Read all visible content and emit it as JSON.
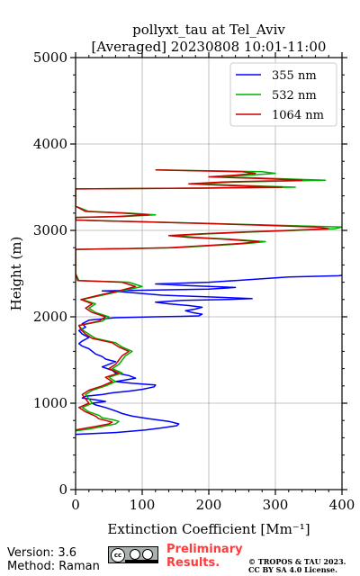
{
  "chart_data": {
    "type": "line",
    "title": "pollyxt_tau at Tel_Aviv",
    "subtitle": "[Averaged] 20230808 10:01-11:00",
    "xlabel": "Extinction Coefficient [Mm⁻¹]",
    "ylabel": "Height (m)",
    "xlim": [
      0,
      400
    ],
    "ylim": [
      0,
      5000
    ],
    "xticks": [
      "0",
      "100",
      "200",
      "300",
      "400"
    ],
    "yticks": [
      "0",
      "1000",
      "2000",
      "3000",
      "4000",
      "5000"
    ],
    "grid": true,
    "legend_position": "top-right",
    "series": [
      {
        "name": "355 nm",
        "color": "#0000ff",
        "points": [
          [
            0,
            640
          ],
          [
            60,
            660
          ],
          [
            105,
            690
          ],
          [
            130,
            715
          ],
          [
            152,
            740
          ],
          [
            155,
            760
          ],
          [
            140,
            790
          ],
          [
            110,
            820
          ],
          [
            85,
            850
          ],
          [
            70,
            880
          ],
          [
            60,
            910
          ],
          [
            45,
            950
          ],
          [
            30,
            980
          ],
          [
            25,
            1000
          ],
          [
            45,
            1020
          ],
          [
            30,
            1040
          ],
          [
            10,
            1060
          ],
          [
            15,
            1080
          ],
          [
            40,
            1100
          ],
          [
            55,
            1120
          ],
          [
            80,
            1140
          ],
          [
            100,
            1160
          ],
          [
            118,
            1190
          ],
          [
            120,
            1210
          ],
          [
            85,
            1230
          ],
          [
            60,
            1250
          ],
          [
            75,
            1270
          ],
          [
            90,
            1290
          ],
          [
            80,
            1320
          ],
          [
            60,
            1350
          ],
          [
            55,
            1380
          ],
          [
            40,
            1420
          ],
          [
            50,
            1450
          ],
          [
            60,
            1480
          ],
          [
            45,
            1510
          ],
          [
            40,
            1540
          ],
          [
            30,
            1570
          ],
          [
            25,
            1600
          ],
          [
            20,
            1630
          ],
          [
            10,
            1660
          ],
          [
            5,
            1690
          ],
          [
            10,
            1720
          ],
          [
            20,
            1760
          ],
          [
            10,
            1800
          ],
          [
            5,
            1840
          ],
          [
            15,
            1880
          ],
          [
            10,
            1920
          ],
          [
            20,
            1960
          ],
          [
            60,
            1990
          ],
          [
            120,
            2000
          ],
          [
            160,
            2005
          ],
          [
            185,
            2010
          ],
          [
            190,
            2030
          ],
          [
            175,
            2050
          ],
          [
            165,
            2070
          ],
          [
            180,
            2090
          ],
          [
            190,
            2110
          ],
          [
            170,
            2130
          ],
          [
            140,
            2150
          ],
          [
            120,
            2170
          ],
          [
            160,
            2190
          ],
          [
            230,
            2200
          ],
          [
            265,
            2210
          ],
          [
            200,
            2230
          ],
          [
            130,
            2250
          ],
          [
            100,
            2270
          ],
          [
            70,
            2290
          ],
          [
            40,
            2300
          ],
          [
            120,
            2310
          ],
          [
            200,
            2320
          ],
          [
            240,
            2340
          ],
          [
            170,
            2360
          ],
          [
            120,
            2380
          ],
          [
            200,
            2400
          ],
          [
            240,
            2420
          ],
          [
            280,
            2440
          ],
          [
            320,
            2460
          ],
          [
            395,
            2475
          ],
          [
            400,
            2480
          ]
        ]
      },
      {
        "name": "532 nm",
        "color": "#00b000",
        "points": [
          [
            0,
            680
          ],
          [
            20,
            700
          ],
          [
            40,
            730
          ],
          [
            60,
            760
          ],
          [
            65,
            790
          ],
          [
            55,
            810
          ],
          [
            40,
            830
          ],
          [
            35,
            860
          ],
          [
            20,
            900
          ],
          [
            10,
            950
          ],
          [
            25,
            1000
          ],
          [
            20,
            1050
          ],
          [
            15,
            1100
          ],
          [
            25,
            1150
          ],
          [
            45,
            1200
          ],
          [
            60,
            1250
          ],
          [
            50,
            1300
          ],
          [
            70,
            1350
          ],
          [
            55,
            1400
          ],
          [
            65,
            1450
          ],
          [
            70,
            1500
          ],
          [
            75,
            1550
          ],
          [
            85,
            1600
          ],
          [
            70,
            1650
          ],
          [
            60,
            1700
          ],
          [
            30,
            1750
          ],
          [
            20,
            1800
          ],
          [
            10,
            1850
          ],
          [
            5,
            1900
          ],
          [
            40,
            1950
          ],
          [
            50,
            2000
          ],
          [
            30,
            2050
          ],
          [
            20,
            2100
          ],
          [
            30,
            2150
          ],
          [
            10,
            2200
          ],
          [
            40,
            2250
          ],
          [
            70,
            2300
          ],
          [
            100,
            2350
          ],
          [
            80,
            2400
          ],
          [
            5,
            2420
          ],
          [
            0,
            2500
          ],
          [
            0,
            2780
          ],
          [
            80,
            2790
          ],
          [
            150,
            2800
          ],
          [
            220,
            2830
          ],
          [
            260,
            2850
          ],
          [
            285,
            2870
          ],
          [
            230,
            2900
          ],
          [
            180,
            2920
          ],
          [
            150,
            2940
          ],
          [
            200,
            2960
          ],
          [
            260,
            2980
          ],
          [
            330,
            3000
          ],
          [
            390,
            3020
          ],
          [
            400,
            3040
          ],
          [
            300,
            3060
          ],
          [
            200,
            3080
          ],
          [
            100,
            3100
          ],
          [
            0,
            3120
          ],
          [
            0,
            3150
          ],
          [
            70,
            3160
          ],
          [
            120,
            3180
          ],
          [
            80,
            3200
          ],
          [
            20,
            3220
          ],
          [
            0,
            3280
          ],
          [
            0,
            3480
          ],
          [
            200,
            3490
          ],
          [
            330,
            3500
          ],
          [
            250,
            3520
          ],
          [
            180,
            3540
          ],
          [
            240,
            3560
          ],
          [
            375,
            3580
          ],
          [
            300,
            3600
          ],
          [
            220,
            3620
          ],
          [
            260,
            3640
          ],
          [
            300,
            3660
          ],
          [
            280,
            3680
          ],
          [
            200,
            3690
          ],
          [
            120,
            3700
          ]
        ]
      },
      {
        "name": "1064 nm",
        "color": "#cc0000",
        "points": [
          [
            0,
            690
          ],
          [
            15,
            710
          ],
          [
            30,
            730
          ],
          [
            50,
            760
          ],
          [
            55,
            780
          ],
          [
            45,
            800
          ],
          [
            35,
            820
          ],
          [
            30,
            850
          ],
          [
            15,
            900
          ],
          [
            5,
            950
          ],
          [
            20,
            1000
          ],
          [
            15,
            1050
          ],
          [
            10,
            1100
          ],
          [
            20,
            1150
          ],
          [
            40,
            1200
          ],
          [
            55,
            1250
          ],
          [
            45,
            1300
          ],
          [
            65,
            1350
          ],
          [
            50,
            1400
          ],
          [
            60,
            1450
          ],
          [
            65,
            1500
          ],
          [
            70,
            1550
          ],
          [
            80,
            1600
          ],
          [
            65,
            1650
          ],
          [
            55,
            1700
          ],
          [
            25,
            1750
          ],
          [
            15,
            1800
          ],
          [
            8,
            1850
          ],
          [
            5,
            1900
          ],
          [
            35,
            1950
          ],
          [
            45,
            2000
          ],
          [
            25,
            2050
          ],
          [
            15,
            2100
          ],
          [
            25,
            2150
          ],
          [
            8,
            2200
          ],
          [
            35,
            2250
          ],
          [
            65,
            2300
          ],
          [
            90,
            2350
          ],
          [
            70,
            2400
          ],
          [
            3,
            2420
          ],
          [
            0,
            2500
          ],
          [
            0,
            2780
          ],
          [
            75,
            2790
          ],
          [
            140,
            2800
          ],
          [
            210,
            2830
          ],
          [
            250,
            2850
          ],
          [
            275,
            2870
          ],
          [
            220,
            2900
          ],
          [
            170,
            2920
          ],
          [
            140,
            2940
          ],
          [
            190,
            2960
          ],
          [
            250,
            2980
          ],
          [
            320,
            3000
          ],
          [
            380,
            3020
          ],
          [
            360,
            3040
          ],
          [
            280,
            3060
          ],
          [
            190,
            3080
          ],
          [
            95,
            3100
          ],
          [
            0,
            3120
          ],
          [
            0,
            3150
          ],
          [
            60,
            3160
          ],
          [
            110,
            3180
          ],
          [
            70,
            3200
          ],
          [
            15,
            3220
          ],
          [
            0,
            3280
          ],
          [
            0,
            3480
          ],
          [
            190,
            3490
          ],
          [
            310,
            3500
          ],
          [
            230,
            3520
          ],
          [
            170,
            3540
          ],
          [
            220,
            3560
          ],
          [
            340,
            3580
          ],
          [
            280,
            3600
          ],
          [
            200,
            3620
          ],
          [
            240,
            3640
          ],
          [
            270,
            3660
          ],
          [
            250,
            3680
          ],
          [
            180,
            3690
          ],
          [
            120,
            3700
          ]
        ]
      }
    ]
  },
  "footer": {
    "version": "Version: 3.6",
    "method": "Method: Raman",
    "preliminary_line1": "Preliminary",
    "preliminary_line2": "Results.",
    "copyright_line1": "© TROPOS & TAU 2023.",
    "copyright_line2": "CC BY SA 4.0 License.",
    "license_badge": "cc"
  }
}
